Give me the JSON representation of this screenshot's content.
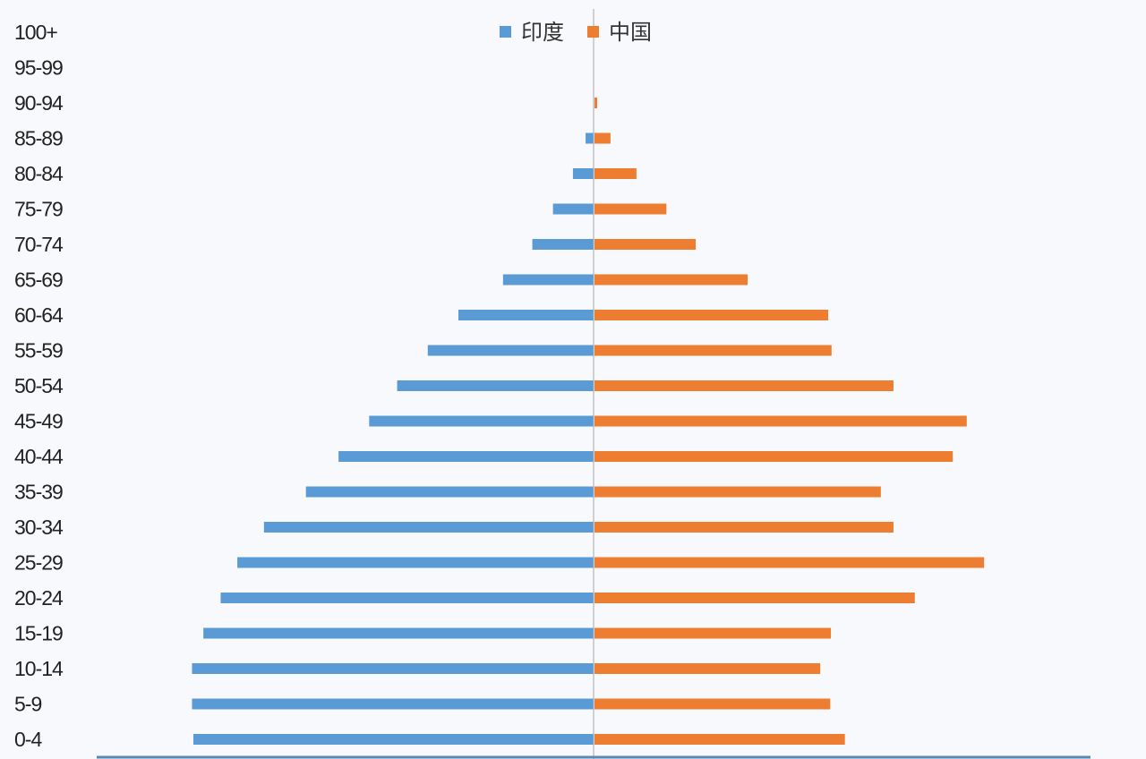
{
  "chart_data": {
    "type": "bar",
    "orientation": "horizontal",
    "layout": "population-pyramid",
    "categories": [
      "0-4",
      "5-9",
      "10-14",
      "15-19",
      "20-24",
      "25-29",
      "30-34",
      "35-39",
      "40-44",
      "45-49",
      "50-54",
      "55-59",
      "60-64",
      "65-69",
      "70-74",
      "75-79",
      "80-84",
      "85-89",
      "90-94",
      "95-99",
      "100+"
    ],
    "series": [
      {
        "name": "印度",
        "color": "#5b9bd5",
        "values": [
          60.1,
          60.3,
          60.3,
          58.6,
          56.0,
          53.5,
          49.5,
          43.2,
          38.3,
          33.7,
          29.5,
          24.9,
          20.3,
          13.6,
          9.2,
          6.1,
          3.1,
          1.2,
          0,
          0,
          0
        ]
      },
      {
        "name": "中国",
        "color": "#ed7d31",
        "values": [
          37.6,
          35.4,
          33.9,
          35.5,
          48.1,
          58.5,
          44.9,
          43.0,
          53.8,
          55.9,
          44.9,
          35.6,
          35.1,
          23.0,
          15.2,
          10.8,
          6.3,
          2.4,
          0.4,
          0,
          0
        ]
      }
    ],
    "xlim": [
      -60.5,
      60.5
    ],
    "title": "",
    "xlabel": "",
    "ylabel": "",
    "legend_position": "top-center",
    "grid": false
  }
}
